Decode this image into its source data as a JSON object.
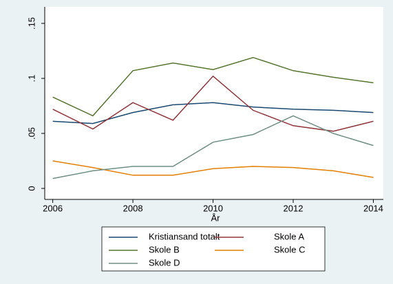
{
  "chart_data": {
    "type": "line",
    "xlabel": "År",
    "x": [
      2006,
      2007,
      2008,
      2009,
      2010,
      2011,
      2012,
      2013,
      2014
    ],
    "xlim": [
      2005.8,
      2014.25
    ],
    "xticks": [
      2006,
      2008,
      2010,
      2012,
      2014
    ],
    "ylim": [
      -0.01,
      0.165
    ],
    "yticks": [
      0,
      {
        "value": 0.05,
        "label": ".05"
      },
      {
        "value": 0.1,
        "label": ".1"
      },
      {
        "value": 0.15,
        "label": ".15"
      }
    ],
    "grid": false,
    "legend": "bottom",
    "series": [
      {
        "name": "Kristiansand totalt",
        "color": "#1a476f",
        "values": [
          0.061,
          0.059,
          0.069,
          0.076,
          0.078,
          0.074,
          0.072,
          0.071,
          0.069
        ]
      },
      {
        "name": "Skole A",
        "color": "#90353b",
        "values": [
          0.072,
          0.054,
          0.078,
          0.062,
          0.102,
          0.071,
          0.057,
          0.052,
          0.061
        ]
      },
      {
        "name": "Skole B",
        "color": "#55752f",
        "values": [
          0.083,
          0.066,
          0.107,
          0.114,
          0.108,
          0.119,
          0.107,
          0.101,
          0.096
        ]
      },
      {
        "name": "Skole C",
        "color": "#e37e00",
        "values": [
          0.025,
          0.019,
          0.012,
          0.012,
          0.018,
          0.02,
          0.019,
          0.016,
          0.01
        ]
      },
      {
        "name": "Skole D",
        "color": "#6e8e84",
        "values": [
          0.009,
          0.016,
          0.02,
          0.02,
          0.042,
          0.049,
          0.066,
          0.05,
          0.039
        ]
      }
    ]
  }
}
